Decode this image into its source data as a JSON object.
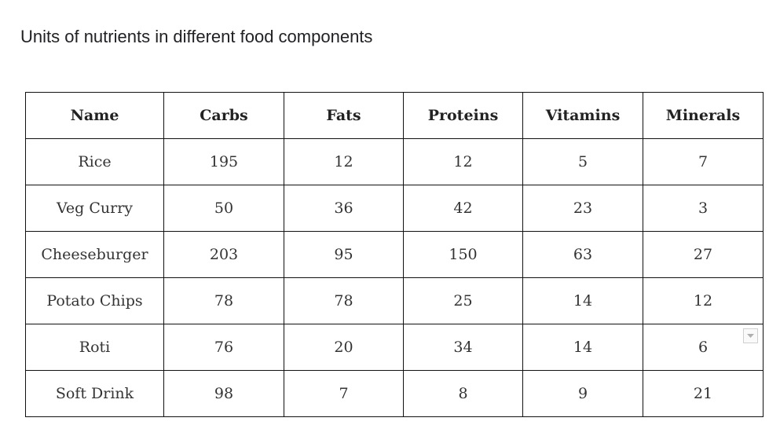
{
  "title": "Units of nutrients in different food components",
  "table": {
    "headers": [
      "Name",
      "Carbs",
      "Fats",
      "Proteins",
      "Vitamins",
      "Minerals"
    ],
    "rows": [
      [
        "Rice",
        "195",
        "12",
        "12",
        "5",
        "7"
      ],
      [
        "Veg Curry",
        "50",
        "36",
        "42",
        "23",
        "3"
      ],
      [
        "Cheeseburger",
        "203",
        "95",
        "150",
        "63",
        "27"
      ],
      [
        "Potato Chips",
        "78",
        "78",
        "25",
        "14",
        "12"
      ],
      [
        "Roti",
        "76",
        "20",
        "34",
        "14",
        "6"
      ],
      [
        "Soft Drink",
        "98",
        "7",
        "8",
        "9",
        "21"
      ]
    ]
  },
  "dropdown_icon": "chevron-down-icon"
}
